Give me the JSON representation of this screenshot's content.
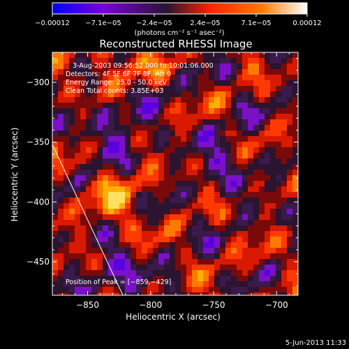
{
  "chart_data": {
    "type": "heatmap",
    "title": "Reconstructed RHESSI Image",
    "xlabel": "Heliocentric X (arcsec)",
    "ylabel": "Heliocentric Y (arcsec)",
    "xlim": [
      -878,
      -683
    ],
    "ylim": [
      -478,
      -275
    ],
    "xticks": [
      -850,
      -800,
      -750,
      -700
    ],
    "yticks": [
      -300,
      -350,
      -400,
      -450
    ],
    "xtick_labels": [
      "−850",
      "−800",
      "−750",
      "−700"
    ],
    "ytick_labels": [
      "−300",
      "−350",
      "−400",
      "−450"
    ],
    "colorbar": {
      "tick_labels": [
        "−0.00012",
        "−7.1e−05",
        "−2.4e−05",
        "2.4e−05",
        "7.1e−05",
        "0.00012"
      ],
      "unit_label": "(photons cm⁻² s⁻¹ asec⁻²)",
      "colors": [
        "#0000ff",
        "#7a00d8",
        "#2a1430",
        "#ff2200",
        "#ff7a00",
        "#ffffff"
      ]
    },
    "annotations": [
      "3-Aug-2003 09:56:52.000 to 10:01:06.000",
      "Detectors: 4F 5F 6F 7F 8F, Att 0",
      "Energy Range: 25.0 - 50.0 keV",
      "Clean    Total counts: 3.85E+03"
    ],
    "peak_label": "Position of Peak = [−859,−429]",
    "limb_line": {
      "x": [
        -878,
        -822
      ],
      "y": [
        -352,
        -478
      ]
    }
  },
  "footer": {
    "date": "5-Jun-2013 11:33"
  }
}
